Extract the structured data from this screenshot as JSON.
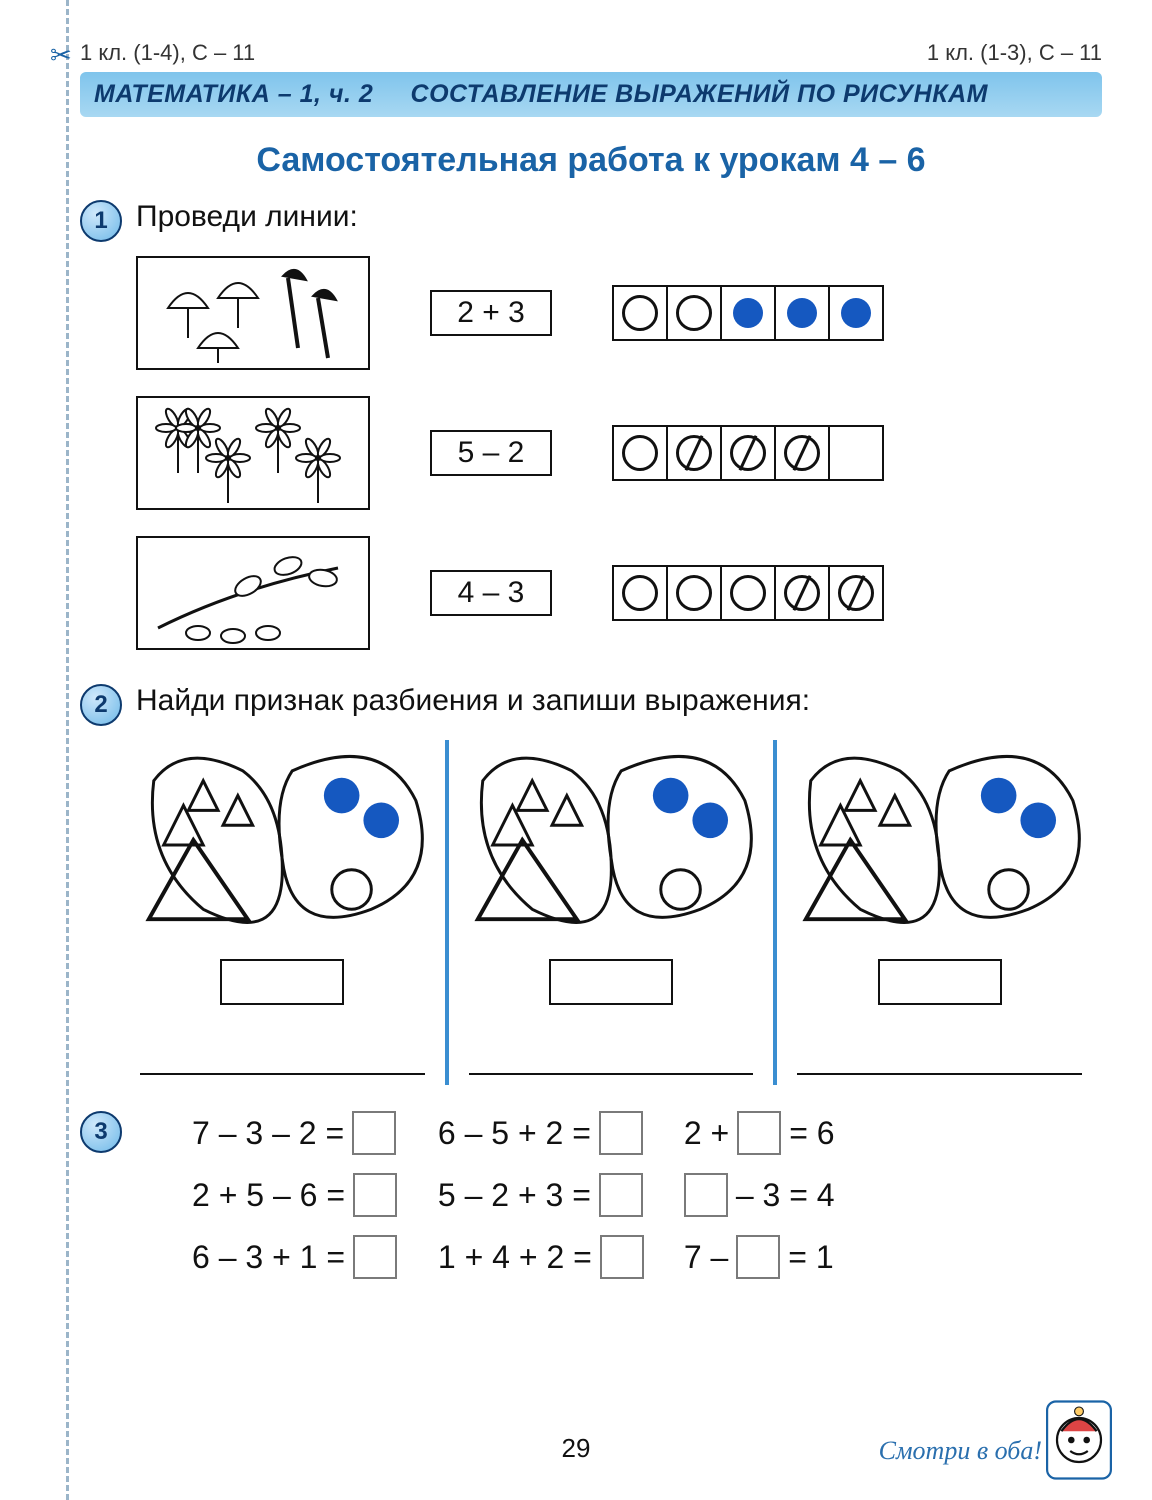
{
  "header": {
    "left": "1 кл. (1-4), С – 11",
    "right": "1 кл. (1-3), С – 11"
  },
  "banner": {
    "left": "МАТЕМАТИКА – 1, ч. 2",
    "right": "СОСТАВЛЕНИЕ ВЫРАЖЕНИЙ ПО РИСУНКАМ"
  },
  "title": "Самостоятельная работа к урокам 4 – 6",
  "task1": {
    "num": "1",
    "text": "Проведи линии:",
    "rows": [
      {
        "picture": "umbrellas",
        "expr": "2 + 3",
        "cells": [
          "open",
          "open",
          "fill",
          "fill",
          "fill"
        ]
      },
      {
        "picture": "flowers",
        "expr": "5 – 2",
        "cells": [
          "open",
          "cross",
          "cross",
          "cross",
          "blank"
        ]
      },
      {
        "picture": "branch",
        "expr": "4 – 3",
        "cells": [
          "open",
          "open",
          "open",
          "cross",
          "cross"
        ]
      }
    ],
    "colors": {
      "cell_border": "#111",
      "fill_circle": "#1558c0"
    }
  },
  "task2": {
    "num": "2",
    "text": "Найди признак разбиения и запиши выражения:",
    "groups": [
      {
        "big_triangles": 1,
        "small_triangles": 3,
        "blue_circles": 2,
        "open_circles": 1
      },
      {
        "big_triangles": 1,
        "small_triangles": 3,
        "blue_circles": 2,
        "open_circles": 1
      },
      {
        "big_triangles": 1,
        "small_triangles": 3,
        "blue_circles": 2,
        "open_circles": 1
      }
    ],
    "colors": {
      "divider": "#3a8ed1",
      "shape_fill": "#1558c0",
      "shape_stroke": "#111"
    }
  },
  "task3": {
    "num": "3",
    "equations": [
      [
        "7 – 3 – 2 =",
        "□"
      ],
      [
        "6 – 5 + 2 =",
        "□"
      ],
      [
        "2 + □ = 6"
      ],
      [
        "2 + 5 – 6 =",
        "□"
      ],
      [
        "5 – 2 + 3 =",
        "□"
      ],
      [
        "□ – 3 = 4"
      ],
      [
        "6 – 3 + 1 =",
        "□"
      ],
      [
        "1 + 4 + 2 =",
        "□"
      ],
      [
        "7 – □ = 1"
      ]
    ]
  },
  "footer": {
    "page": "29",
    "back": "Смотри в оба!"
  },
  "palette": {
    "accent": "#1a63a6",
    "banner_bg": "#7fc4ec",
    "text": "#111"
  }
}
